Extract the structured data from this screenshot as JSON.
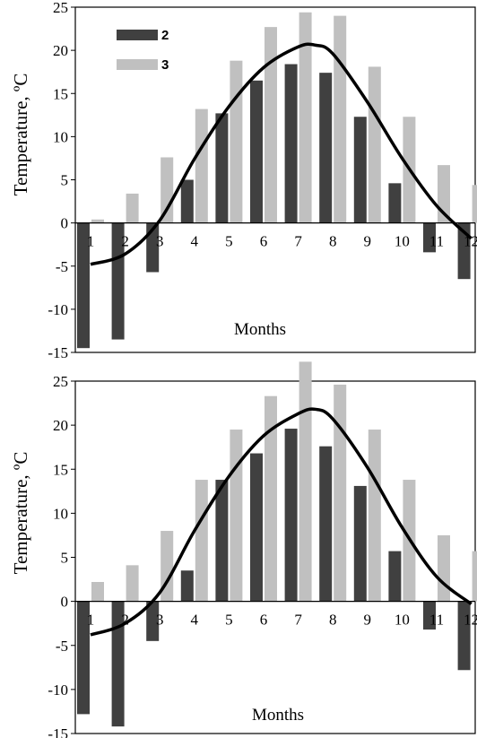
{
  "colors": {
    "series_2": "#404040",
    "series_3": "#c0c0c0",
    "curve": "#000000"
  },
  "chart_data": [
    {
      "type": "bar",
      "categories": [
        "1",
        "2",
        "3",
        "4",
        "5",
        "6",
        "7",
        "8",
        "9",
        "10",
        "11",
        "12"
      ],
      "ylabel": "Temperature, ºC",
      "xlabel": "Months",
      "ylim": [
        -15,
        25
      ],
      "yticks": [
        "25",
        "20",
        "15",
        "10",
        "5",
        "0",
        "-5",
        "-10",
        "-15"
      ],
      "legend": {
        "position": "top-left",
        "entries": [
          "2",
          "3"
        ]
      },
      "series": [
        {
          "name": "2",
          "values": [
            -14.5,
            -13.5,
            -5.7,
            5.0,
            12.7,
            16.5,
            18.4,
            17.4,
            12.3,
            4.6,
            -3.4,
            -6.5
          ]
        },
        {
          "name": "3",
          "values": [
            0.4,
            3.4,
            7.6,
            13.2,
            18.8,
            22.7,
            24.4,
            24.0,
            18.1,
            12.3,
            6.7,
            4.4
          ]
        }
      ],
      "curve": {
        "x": [
          1,
          2,
          3,
          4,
          5,
          6,
          7,
          7.5,
          8,
          9,
          10,
          11,
          12
        ],
        "y": [
          -4.8,
          -3.6,
          0.3,
          7.4,
          13.5,
          18.0,
          20.4,
          20.6,
          19.6,
          14.0,
          7.5,
          2.0,
          -1.8
        ]
      }
    },
    {
      "type": "bar",
      "categories": [
        "1",
        "2",
        "3",
        "4",
        "5",
        "6",
        "7",
        "8",
        "9",
        "10",
        "11",
        "12"
      ],
      "ylabel": "Temperature, ºC",
      "xlabel": "Months",
      "ylim": [
        -15,
        25
      ],
      "yticks": [
        "25",
        "20",
        "15",
        "10",
        "5",
        "0",
        "-5",
        "-10",
        "-15"
      ],
      "series": [
        {
          "name": "2",
          "values": [
            -12.8,
            -14.2,
            -4.5,
            3.5,
            13.8,
            16.8,
            19.6,
            17.6,
            13.1,
            5.7,
            -3.2,
            -7.8
          ]
        },
        {
          "name": "3",
          "values": [
            2.2,
            4.1,
            8.0,
            13.8,
            19.5,
            23.3,
            27.2,
            24.6,
            19.5,
            13.8,
            7.5,
            5.7
          ]
        }
      ],
      "curve": {
        "x": [
          1,
          2,
          3,
          4,
          5,
          6,
          7,
          7.5,
          8,
          9,
          10,
          11,
          12
        ],
        "y": [
          -3.8,
          -2.5,
          1.0,
          8.0,
          14.2,
          18.8,
          21.3,
          21.8,
          20.7,
          15.2,
          8.4,
          2.8,
          -0.3
        ]
      }
    }
  ]
}
